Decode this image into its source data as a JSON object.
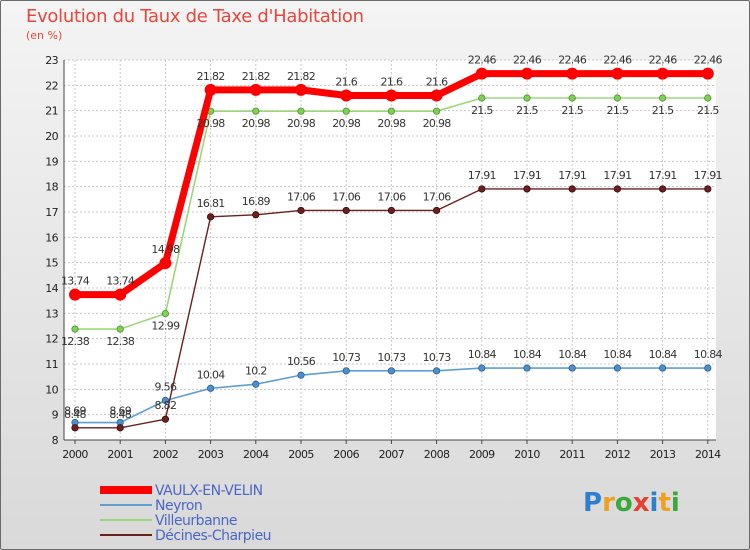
{
  "chart_data": {
    "type": "line",
    "title": "Evolution du Taux de Taxe d'Habitation",
    "ylabel": "(en %)",
    "xlabel": "",
    "ylim": [
      8,
      23
    ],
    "yticks": [
      "8",
      "9",
      "10",
      "11",
      "12",
      "13",
      "14",
      "15",
      "16",
      "17",
      "18",
      "19",
      "20",
      "21",
      "22",
      "23"
    ],
    "categories": [
      "2000",
      "2001",
      "2002",
      "2003",
      "2004",
      "2005",
      "2006",
      "2007",
      "2008",
      "2009",
      "2010",
      "2011",
      "2012",
      "2013",
      "2014"
    ],
    "grid": true,
    "series": [
      {
        "name": "VAULX-EN-VELIN",
        "color": "#ff0000",
        "values": [
          13.74,
          13.74,
          14.98,
          21.82,
          21.82,
          21.82,
          21.6,
          21.6,
          21.6,
          22.46,
          22.46,
          22.46,
          22.46,
          22.46,
          22.46
        ],
        "labels": [
          "13.74",
          "13.74",
          "14.98",
          "21.82",
          "21.82",
          "21.82",
          "21.6",
          "21.6",
          "21.6",
          "22.46",
          "22.46",
          "22.46",
          "22.46",
          "22.46",
          "22.46"
        ]
      },
      {
        "name": "Neyron",
        "color": "#5f9fd0",
        "values": [
          8.69,
          8.69,
          9.56,
          10.04,
          10.2,
          10.56,
          10.73,
          10.73,
          10.73,
          10.84,
          10.84,
          10.84,
          10.84,
          10.84,
          10.84
        ],
        "labels": [
          "8.69",
          "8.69",
          "9.56",
          "10.04",
          "10.2",
          "10.56",
          "10.73",
          "10.73",
          "10.73",
          "10.84",
          "10.84",
          "10.84",
          "10.84",
          "10.84",
          "10.84"
        ]
      },
      {
        "name": "Villeurbanne",
        "color": "#8fd16a",
        "values": [
          12.38,
          12.38,
          12.99,
          20.98,
          20.98,
          20.98,
          20.98,
          20.98,
          20.98,
          21.5,
          21.5,
          21.5,
          21.5,
          21.5,
          21.5
        ],
        "labels": [
          "12.38",
          "12.38",
          "12.99",
          "20.98",
          "20.98",
          "20.98",
          "20.98",
          "20.98",
          "20.98",
          "21.5",
          "21.5",
          "21.5",
          "21.5",
          "21.5",
          "21.5"
        ]
      },
      {
        "name": "Décines-Charpieu",
        "color": "#6b1f1f",
        "values": [
          8.48,
          8.48,
          8.82,
          16.81,
          16.89,
          17.06,
          17.06,
          17.06,
          17.06,
          17.91,
          17.91,
          17.91,
          17.91,
          17.91,
          17.91
        ],
        "labels": [
          "8.48",
          "8.48",
          "8.82",
          "16.81",
          "16.89",
          "17.06",
          "17.06",
          "17.06",
          "17.06",
          "17.91",
          "17.91",
          "17.91",
          "17.91",
          "17.91",
          "17.91"
        ]
      }
    ],
    "legend_position": "bottom-left"
  },
  "branding": {
    "logo_text": "Proxiti"
  }
}
